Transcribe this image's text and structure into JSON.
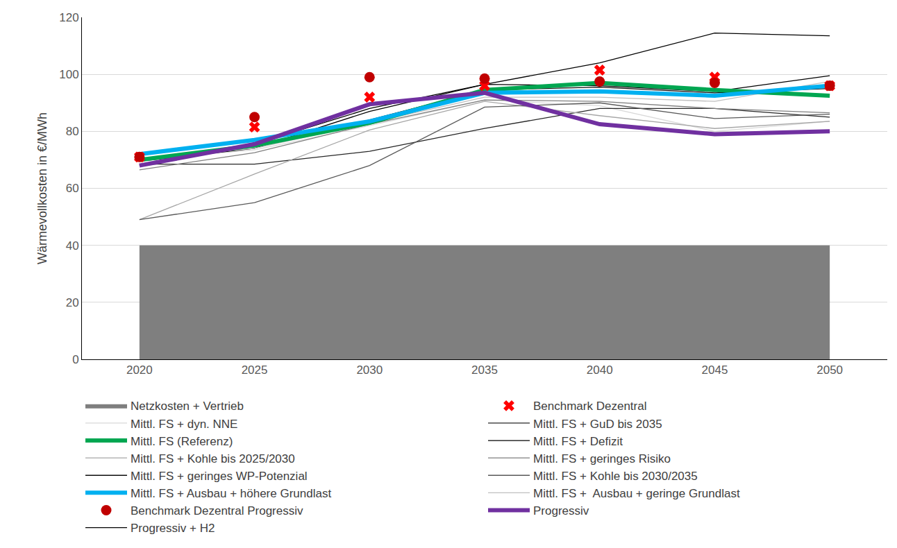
{
  "chart_data": {
    "type": "line",
    "y_label": "Wärmevollkosten in €/MWh",
    "x": [
      2020,
      2025,
      2030,
      2035,
      2040,
      2045,
      2050
    ],
    "xlim": [
      2017.5,
      2052.5
    ],
    "xticks": [
      2020,
      2025,
      2030,
      2035,
      2040,
      2045,
      2050
    ],
    "ylim": [
      0,
      120
    ],
    "yticks": [
      0,
      20,
      40,
      60,
      80,
      100,
      120
    ],
    "grid": true,
    "legend": "bottom",
    "series": [
      {
        "name": "Netzkosten + Vertrieb",
        "type": "area",
        "color": "#7f7f7f",
        "values": [
          40,
          40,
          40,
          40,
          40,
          40,
          40
        ]
      },
      {
        "name": "Benchmark Dezentral",
        "type": "scatter",
        "marker": "x",
        "color": "#ff0000",
        "values": [
          71,
          81.5,
          92,
          96,
          101.5,
          99,
          96
        ]
      },
      {
        "name": "Mittl. FS + dyn. NNE",
        "type": "line",
        "line_style": "solid",
        "color": "#d9d9d9",
        "values": [
          70,
          73.5,
          82,
          91,
          89,
          80,
          83.5
        ]
      },
      {
        "name": "Mittl. FS + GuD bis 2035",
        "type": "line",
        "line_style": "solid",
        "color": "#262626",
        "values": [
          68.5,
          68.5,
          73,
          81,
          88,
          88,
          85
        ]
      },
      {
        "name": "Mittl. FS (Referenz)",
        "type": "line",
        "line_style": "thick",
        "color": "#00a651",
        "values": [
          70,
          75,
          83,
          94.5,
          97,
          94.5,
          92.5
        ]
      },
      {
        "name": "Mittl. FS + Defizit",
        "type": "line",
        "line_style": "solid",
        "color": "#000000",
        "values": [
          69.5,
          74,
          87,
          96.5,
          96,
          94,
          99.5
        ]
      },
      {
        "name": "Mittl. FS + Kohle bis 2025/2030",
        "type": "line",
        "line_style": "solid",
        "color": "#a6a6a6",
        "values": [
          49,
          65,
          80.5,
          90.5,
          85.5,
          81,
          83.5
        ]
      },
      {
        "name": "Mittl. FS + geringes Risiko",
        "type": "line",
        "line_style": "solid",
        "color": "#7f7f7f",
        "values": [
          66.5,
          72.5,
          82.5,
          91,
          90.5,
          88,
          86.5
        ]
      },
      {
        "name": "Mittl. FS + geringes WP-Potenzial",
        "type": "line",
        "line_style": "solid",
        "color": "#0d0d0d",
        "values": [
          70,
          75,
          84,
          94.5,
          95.5,
          93.5,
          95
        ]
      },
      {
        "name": "Mittl. FS + Kohle bis 2030/2035",
        "type": "line",
        "line_style": "solid",
        "color": "#595959",
        "values": [
          49,
          55,
          68,
          88.5,
          90,
          84.5,
          86
        ]
      },
      {
        "name": "Mittl. FS + Ausbau + höhere Grundlast",
        "type": "line",
        "line_style": "thick",
        "color": "#00b0f0",
        "values": [
          72,
          77,
          83.5,
          93.5,
          94,
          92.5,
          96
        ]
      },
      {
        "name": "Mittl. FS +  Ausbau + geringe Grundlast",
        "type": "line",
        "line_style": "solid",
        "color": "#bfbfbf",
        "values": [
          70.5,
          74,
          83,
          92,
          92,
          90.5,
          97.5
        ]
      },
      {
        "name": "Benchmark Dezentral Progressiv",
        "type": "scatter",
        "marker": "circle",
        "color": "#c00000",
        "values": [
          71,
          85,
          99,
          98.5,
          97.5,
          97,
          96
        ]
      },
      {
        "name": "Progressiv",
        "type": "line",
        "line_style": "thick",
        "color": "#7030a0",
        "values": [
          68,
          75.5,
          89.5,
          93.5,
          82.5,
          79,
          80
        ]
      },
      {
        "name": "Progressiv + H2",
        "type": "line",
        "line_style": "solid",
        "color": "#000000",
        "values": [
          68,
          75.5,
          88,
          96.5,
          104,
          114.5,
          113.5
        ]
      }
    ]
  }
}
